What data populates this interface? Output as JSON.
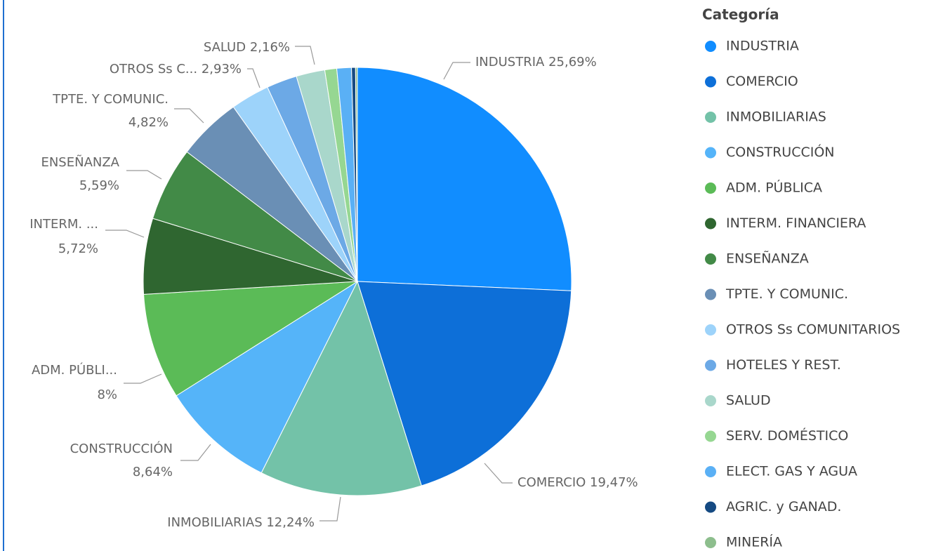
{
  "chart_data": {
    "type": "pie",
    "legend_title": "Categoría",
    "categories": [
      "INDUSTRIA",
      "COMERCIO",
      "INMOBILIARIAS",
      "CONSTRUCCIÓN",
      "ADM. PÚBLICA",
      "INTERM. FINANCIERA",
      "ENSEÑANZA",
      "TPTE. Y COMUNIC.",
      "OTROS Ss COMUNITARIOS",
      "HOTELES Y REST.",
      "SALUD",
      "SERV. DOMÉSTICO",
      "ELECT. GAS Y AGUA",
      "AGRIC. y GANAD.",
      "MINERÍA"
    ],
    "values": [
      25.69,
      19.47,
      12.24,
      8.64,
      8,
      5.72,
      5.59,
      4.82,
      2.93,
      2.3,
      2.16,
      0.9,
      1.1,
      0.3,
      0.14
    ],
    "value_labels": [
      "25,69%",
      "19,47%",
      "12,24%",
      "8,64%",
      "8%",
      "5,72%",
      "5,59%",
      "4,82%",
      "2,93%",
      null,
      "2,16%",
      null,
      null,
      null,
      null
    ],
    "data_label_categories": [
      "INDUSTRIA",
      "COMERCIO",
      "INMOBILIARIAS",
      "CONSTRUCCIÓN",
      "ADM. PÚBLI...",
      "INTERM. ...",
      "ENSEÑANZA",
      "TPTE. Y COMUNIC.",
      "OTROS Ss C...",
      null,
      "SALUD",
      null,
      null,
      null,
      null
    ],
    "colors": [
      "#118dff",
      "#0d6fd8",
      "#73c2a8",
      "#55b4f9",
      "#5bbb57",
      "#2f6630",
      "#428a47",
      "#6a8fb5",
      "#9dd3fa",
      "#6ca9e6",
      "#a9d7cb",
      "#96d792",
      "#5ab0f5",
      "#154a82",
      "#8dbe8d"
    ],
    "legend_position": "right"
  }
}
